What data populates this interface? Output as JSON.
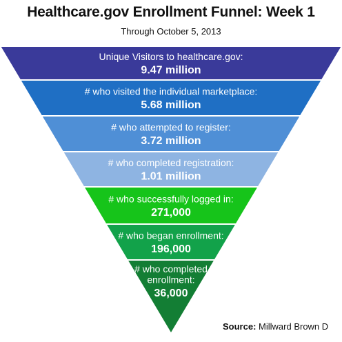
{
  "title": "Healthcare.gov Enrollment Funnel:  Week 1",
  "subtitle": "Through October 5, 2013",
  "source": {
    "label": "Source:",
    "text": "Millward Brown D"
  },
  "chart_data": {
    "type": "funnel",
    "title": "Healthcare.gov Enrollment Funnel:  Week 1",
    "subtitle": "Through October 5, 2013",
    "stages": [
      {
        "label_lines": [
          "Unique Visitors to healthcare.gov:"
        ],
        "value_label": "9.47 million",
        "value": 9470000,
        "color": "#3a3a9a"
      },
      {
        "label_lines": [
          "# who visited the individual marketplace:"
        ],
        "value_label": "5.68 million",
        "value": 5680000,
        "color": "#1f6fc4"
      },
      {
        "label_lines": [
          "# who attempted to register:"
        ],
        "value_label": "3.72 million",
        "value": 3720000,
        "color": "#4f8fd6"
      },
      {
        "label_lines": [
          "# who completed registration:"
        ],
        "value_label": "1.01 million",
        "value": 1010000,
        "color": "#8eb4e2"
      },
      {
        "label_lines": [
          "# who successfully logged in:"
        ],
        "value_label": "271,000",
        "value": 271000,
        "color": "#16c41a"
      },
      {
        "label_lines": [
          "# who began enrollment:"
        ],
        "value_label": "196,000",
        "value": 196000,
        "color": "#12a24a"
      },
      {
        "label_lines": [
          "# who completed",
          "enrollment:"
        ],
        "value_label": "36,000",
        "value": 36000,
        "color": "#137e34"
      }
    ]
  }
}
